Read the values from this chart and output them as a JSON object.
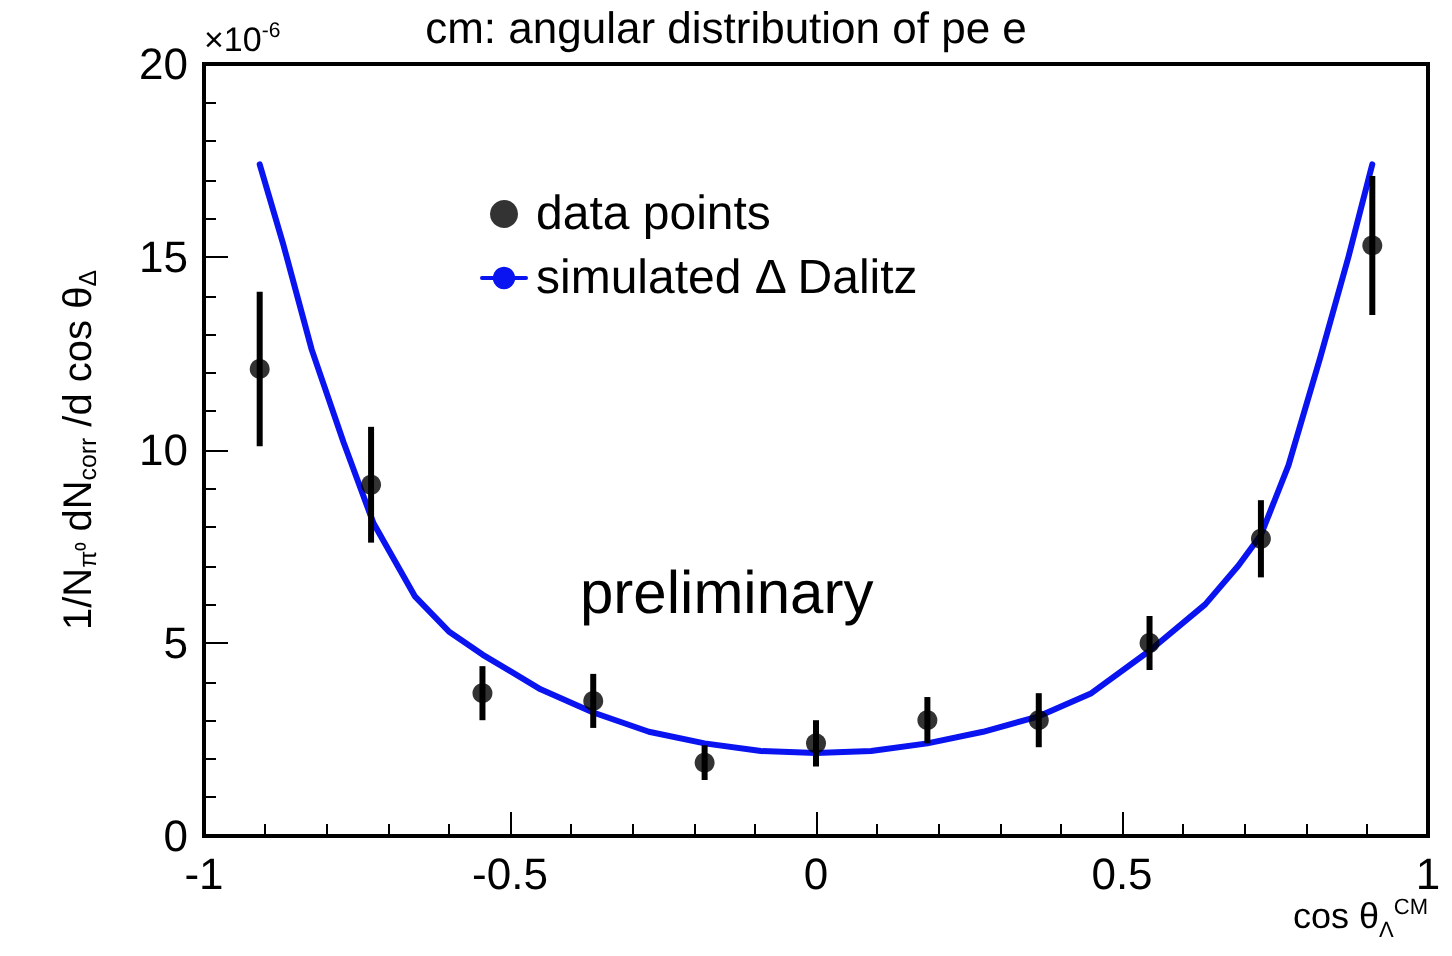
{
  "chart_data": {
    "type": "scatter",
    "title": "cm: angular distribution of pe e",
    "xlabel": "cos θ$_{Λ}$$^{CM}$",
    "ylabel": "1/N$_{π⁰}$ dN$_{corr}$ /d cos θ$_{Δ}$",
    "annotations": [
      "×10$^{-6}$",
      "preliminary"
    ],
    "xlim": [
      -1,
      1
    ],
    "xticks": [
      -1,
      -0.5,
      0,
      0.5,
      1
    ],
    "ylim": [
      0,
      20
    ],
    "yticks": [
      0,
      5,
      10,
      15,
      20
    ],
    "grid": false,
    "legend": "top",
    "marker": "circle",
    "series": [
      {
        "name": "data points",
        "color": "#000000",
        "x": [
          -0.909,
          -0.727,
          -0.545,
          -0.364,
          -0.182,
          0,
          0.182,
          0.364,
          0.545,
          0.727,
          0.909
        ],
        "values": [
          12.1,
          9.1,
          3.7,
          3.5,
          1.9,
          2.4,
          3.0,
          3.0,
          5.0,
          7.7,
          15.3
        ],
        "errors": [
          2.0,
          1.5,
          0.7,
          0.7,
          0.45,
          0.6,
          0.6,
          0.7,
          0.7,
          1.0,
          1.8
        ]
      },
      {
        "name": "simulated Δ Dalitz",
        "type": "line",
        "color": "#0a14f0",
        "marker": "none",
        "line_style": "solid",
        "x": [
          -0.909,
          -0.87,
          -0.824,
          -0.772,
          -0.723,
          -0.655,
          -0.6,
          -0.545,
          -0.45,
          -0.364,
          -0.273,
          -0.182,
          -0.09,
          0,
          0.09,
          0.182,
          0.273,
          0.364,
          0.45,
          0.545,
          0.636,
          0.69,
          0.727,
          0.772,
          0.824,
          0.87,
          0.909
        ],
        "values": [
          17.4,
          15.3,
          12.6,
          10.2,
          8.1,
          6.2,
          5.3,
          4.7,
          3.8,
          3.2,
          2.7,
          2.4,
          2.2,
          2.15,
          2.2,
          2.4,
          2.7,
          3.1,
          3.7,
          4.8,
          6.0,
          7.0,
          7.8,
          9.6,
          12.4,
          15.0,
          17.4
        ]
      }
    ]
  }
}
